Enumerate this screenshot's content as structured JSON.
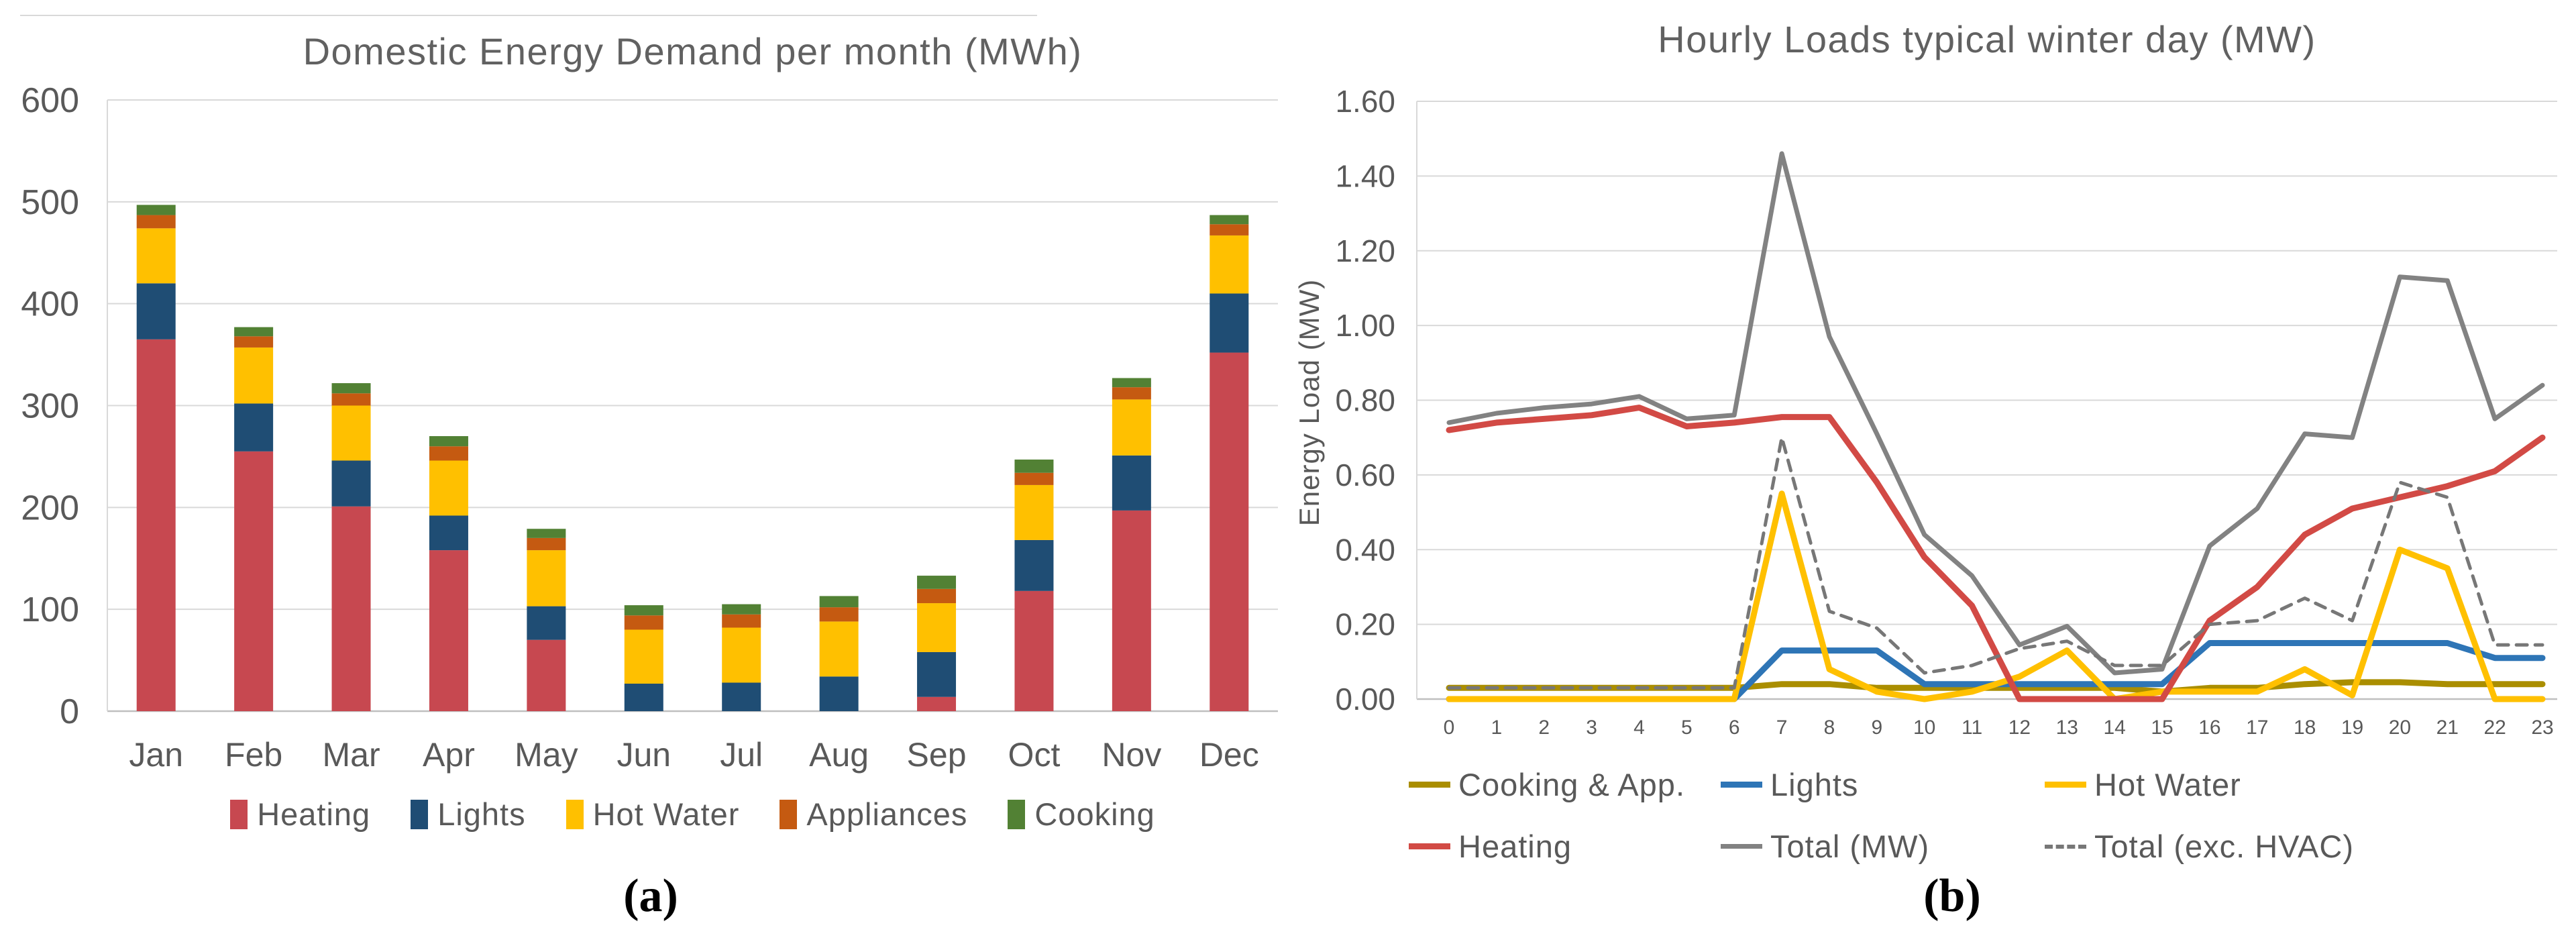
{
  "colors": {
    "background": "#ffffff",
    "title_text": "#616161",
    "axis_text": "#595959",
    "gridline": "#d9d9d9",
    "axis_line": "#bfbfbf"
  },
  "captions": {
    "a": "(a)",
    "b": "(b)"
  },
  "chart_data": [
    {
      "type": "bar",
      "stacked": true,
      "title": "Domestic Energy Demand per month (MWh)",
      "xlabel": "",
      "ylabel": "",
      "ylim": [
        0,
        600
      ],
      "ytick_labels": [
        "0",
        "100",
        "200",
        "300",
        "400",
        "500",
        "600"
      ],
      "grid": true,
      "legend_position": "bottom",
      "categories": [
        "Jan",
        "Feb",
        "Mar",
        "Apr",
        "May",
        "Jun",
        "Jul",
        "Aug",
        "Sep",
        "Oct",
        "Nov",
        "Dec"
      ],
      "series": [
        {
          "name": "Heating",
          "color": "#C74850",
          "values": [
            365,
            255,
            201,
            158,
            70,
            0,
            0,
            0,
            14,
            118,
            197,
            352
          ]
        },
        {
          "name": "Lights",
          "color": "#1F4D74",
          "values": [
            55,
            47,
            45,
            34,
            33,
            27,
            28,
            34,
            44,
            50,
            54,
            58
          ]
        },
        {
          "name": "Hot Water",
          "color": "#FFC000",
          "values": [
            54,
            55,
            54,
            54,
            55,
            53,
            54,
            54,
            48,
            54,
            55,
            57
          ]
        },
        {
          "name": "Appliances",
          "color": "#C55A11",
          "values": [
            13,
            11,
            12,
            14,
            12,
            14,
            13,
            14,
            14,
            12,
            12,
            11
          ]
        },
        {
          "name": "Cooking",
          "color": "#528134",
          "values": [
            10,
            9,
            10,
            10,
            9,
            10,
            10,
            11,
            13,
            13,
            9,
            9
          ]
        }
      ]
    },
    {
      "type": "line",
      "title": "Hourly Loads typical winter day (MW)",
      "xlabel": "",
      "ylabel": "Energy Load (MW)",
      "ylim": [
        0,
        1.6
      ],
      "ytick_labels": [
        "0.00",
        "0.20",
        "0.40",
        "0.60",
        "0.80",
        "1.00",
        "1.20",
        "1.40",
        "1.60"
      ],
      "grid": true,
      "legend_position": "bottom",
      "x": [
        "0",
        "1",
        "2",
        "3",
        "4",
        "5",
        "6",
        "7",
        "8",
        "9",
        "10",
        "11",
        "12",
        "13",
        "14",
        "15",
        "16",
        "17",
        "18",
        "19",
        "20",
        "21",
        "22",
        "23"
      ],
      "series": [
        {
          "name": "Cooking & App.",
          "color": "#AA8E00",
          "width": 9,
          "dashed": false,
          "values": [
            0.03,
            0.03,
            0.03,
            0.03,
            0.03,
            0.03,
            0.03,
            0.04,
            0.04,
            0.03,
            0.03,
            0.03,
            0.03,
            0.03,
            0.03,
            0.02,
            0.03,
            0.03,
            0.04,
            0.045,
            0.045,
            0.04,
            0.04,
            0.04
          ]
        },
        {
          "name": "Lights",
          "color": "#2E75B6",
          "width": 9,
          "dashed": false,
          "values": [
            0,
            0,
            0,
            0,
            0,
            0,
            0,
            0.13,
            0.13,
            0.13,
            0.04,
            0.04,
            0.04,
            0.04,
            0.04,
            0.04,
            0.15,
            0.15,
            0.15,
            0.15,
            0.15,
            0.15,
            0.11,
            0.11
          ]
        },
        {
          "name": "Hot Water",
          "color": "#FFC000",
          "width": 9,
          "dashed": false,
          "values": [
            0,
            0,
            0,
            0,
            0,
            0,
            0,
            0.55,
            0.08,
            0.02,
            0,
            0.02,
            0.06,
            0.13,
            0,
            0.02,
            0.02,
            0.02,
            0.08,
            0.01,
            0.4,
            0.35,
            0,
            0
          ]
        },
        {
          "name": "Heating",
          "color": "#D24A45",
          "width": 9,
          "dashed": false,
          "values": [
            0.72,
            0.74,
            0.75,
            0.76,
            0.78,
            0.73,
            0.74,
            0.755,
            0.755,
            0.58,
            0.38,
            0.25,
            0,
            0,
            0,
            0,
            0.21,
            0.3,
            0.44,
            0.51,
            0.54,
            0.57,
            0.61,
            0.7
          ]
        },
        {
          "name": "Total (MW)",
          "color": "#828282",
          "width": 7,
          "dashed": false,
          "values": [
            0.74,
            0.765,
            0.78,
            0.79,
            0.81,
            0.75,
            0.76,
            1.46,
            0.97,
            0.71,
            0.44,
            0.33,
            0.145,
            0.195,
            0.07,
            0.08,
            0.41,
            0.51,
            0.71,
            0.7,
            1.13,
            1.12,
            0.75,
            0.84
          ]
        },
        {
          "name": "Total (exc. HVAC)",
          "color": "#777777",
          "width": 5,
          "dashed": true,
          "values": [
            0.03,
            0.03,
            0.03,
            0.03,
            0.03,
            0.03,
            0.03,
            0.7,
            0.235,
            0.19,
            0.07,
            0.09,
            0.135,
            0.155,
            0.09,
            0.09,
            0.2,
            0.21,
            0.27,
            0.21,
            0.58,
            0.54,
            0.145,
            0.145
          ]
        }
      ]
    }
  ]
}
